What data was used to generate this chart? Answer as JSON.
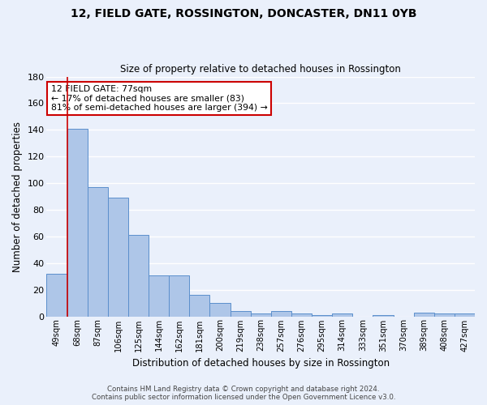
{
  "title": "12, FIELD GATE, ROSSINGTON, DONCASTER, DN11 0YB",
  "subtitle": "Size of property relative to detached houses in Rossington",
  "xlabel": "Distribution of detached houses by size in Rossington",
  "ylabel": "Number of detached properties",
  "categories": [
    "49sqm",
    "68sqm",
    "87sqm",
    "106sqm",
    "125sqm",
    "144sqm",
    "162sqm",
    "181sqm",
    "200sqm",
    "219sqm",
    "238sqm",
    "257sqm",
    "276sqm",
    "295sqm",
    "314sqm",
    "333sqm",
    "351sqm",
    "370sqm",
    "389sqm",
    "408sqm",
    "427sqm"
  ],
  "values": [
    32,
    141,
    97,
    89,
    61,
    31,
    31,
    16,
    10,
    4,
    2,
    4,
    2,
    1,
    2,
    0,
    1,
    0,
    3,
    2,
    2
  ],
  "bar_color": "#aec6e8",
  "bar_edge_color": "#5b8fcc",
  "annotation_text": "12 FIELD GATE: 77sqm\n← 17% of detached houses are smaller (83)\n81% of semi-detached houses are larger (394) →",
  "annotation_box_color": "#ffffff",
  "annotation_box_edge": "#cc0000",
  "red_line_x": 0.5,
  "ylim": [
    0,
    180
  ],
  "yticks": [
    0,
    20,
    40,
    60,
    80,
    100,
    120,
    140,
    160,
    180
  ],
  "background_color": "#eaf0fb",
  "grid_color": "#ffffff",
  "footer": "Contains HM Land Registry data © Crown copyright and database right 2024.\nContains public sector information licensed under the Open Government Licence v3.0."
}
